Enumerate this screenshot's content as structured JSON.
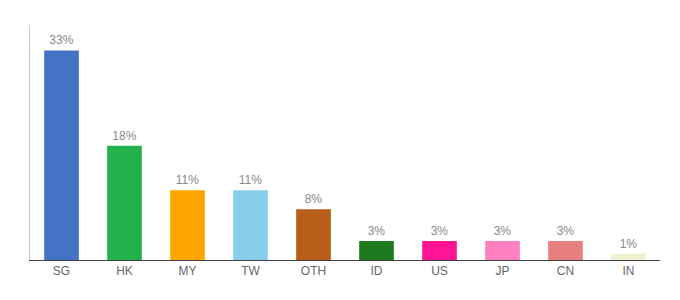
{
  "chart_data": {
    "type": "bar",
    "categories": [
      "SG",
      "HK",
      "MY",
      "TW",
      "OTH",
      "ID",
      "US",
      "JP",
      "CN",
      "IN"
    ],
    "values": [
      33,
      18,
      11,
      11,
      8,
      3,
      3,
      3,
      3,
      1
    ],
    "value_labels": [
      "33%",
      "18%",
      "11%",
      "11%",
      "8%",
      "3%",
      "3%",
      "3%",
      "3%",
      "1%"
    ],
    "colors": [
      "#4472c4",
      "#22b14c",
      "#ffa500",
      "#87ceeb",
      "#b85c1a",
      "#1e7a1e",
      "#ff1493",
      "#ff80c0",
      "#e88080",
      "#f0f0d0"
    ],
    "ylim": [
      0,
      37
    ],
    "data_labels": true,
    "tick_labels": "x",
    "grid": false
  }
}
